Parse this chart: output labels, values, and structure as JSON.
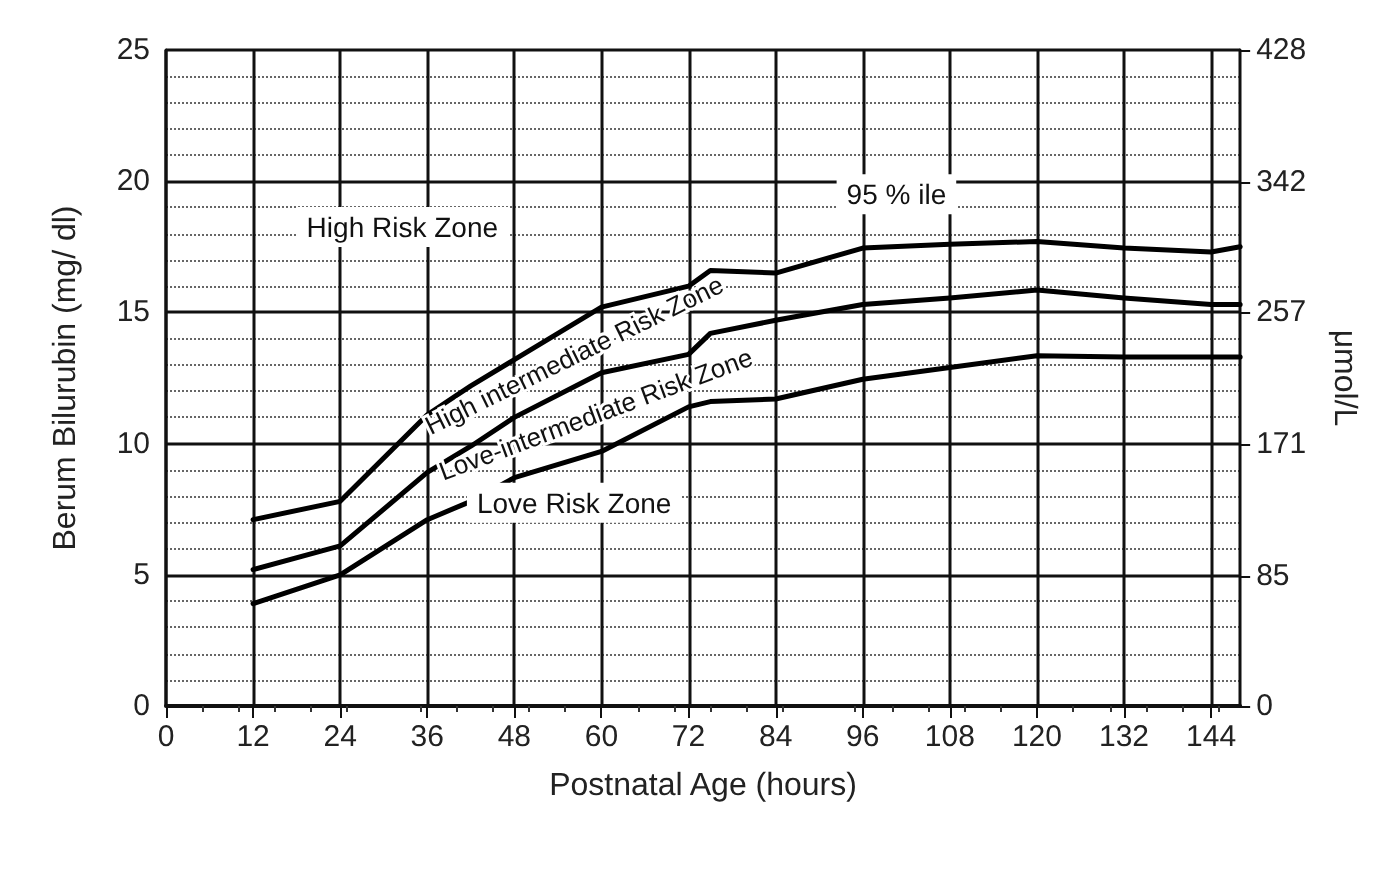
{
  "chart_data": {
    "type": "line",
    "xlabel": "Postnatal Age (hours)",
    "ylabel": "Berum Bilurubin (mg/ dl)",
    "y2label": "μmol/L",
    "xlim": [
      0,
      148
    ],
    "xticks": [
      0,
      12,
      24,
      36,
      48,
      60,
      72,
      84,
      96,
      108,
      120,
      132,
      144
    ],
    "ylim": [
      0,
      25
    ],
    "yticks": [
      0,
      5,
      10,
      15,
      20,
      25
    ],
    "y2lim": [
      0,
      428
    ],
    "y2ticks": [
      0,
      85,
      171,
      257,
      342,
      428
    ],
    "grid": true,
    "marker": "none",
    "line_style": "solid",
    "series": [
      {
        "color": "#000000",
        "x": [
          12,
          24,
          36,
          42,
          48,
          60,
          72,
          75,
          84,
          96,
          108,
          120,
          132,
          144,
          148
        ],
        "values": [
          7.1,
          7.8,
          11.1,
          12.2,
          13.2,
          15.2,
          16.0,
          16.6,
          16.5,
          17.45,
          17.6,
          17.7,
          17.45,
          17.3,
          17.5
        ]
      },
      {
        "color": "#000000",
        "x": [
          12,
          24,
          36,
          42,
          48,
          60,
          72,
          75,
          84,
          96,
          108,
          120,
          132,
          144,
          148
        ],
        "values": [
          5.2,
          6.1,
          8.9,
          9.9,
          11.0,
          12.7,
          13.4,
          14.2,
          14.7,
          15.3,
          15.55,
          15.85,
          15.55,
          15.3,
          15.3
        ]
      },
      {
        "color": "#000000",
        "x": [
          12,
          24,
          36,
          42,
          48,
          60,
          72,
          75,
          84,
          96,
          108,
          120,
          132,
          144,
          148
        ],
        "values": [
          3.9,
          5.0,
          7.1,
          7.8,
          8.7,
          9.7,
          11.4,
          11.6,
          11.7,
          12.45,
          12.9,
          13.35,
          13.3,
          13.3,
          13.3
        ]
      }
    ],
    "annotations": [
      "High Risk Zone",
      "95 % ile",
      "High intermediate Risk Zone",
      "Love-intermediate Risk Zone",
      "Love Risk Zone"
    ]
  }
}
